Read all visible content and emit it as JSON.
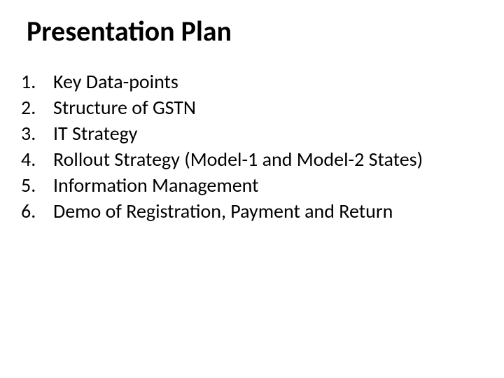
{
  "slide": {
    "title": "Presentation Plan",
    "items": [
      {
        "text": "Key Data-points"
      },
      {
        "text": "Structure of GSTN"
      },
      {
        "text": "IT Strategy"
      },
      {
        "text": "Rollout Strategy (Model-1 and Model-2 States)"
      },
      {
        "text": "Information Management"
      },
      {
        "text": "Demo of Registration, Payment and Return"
      }
    ],
    "title_fontsize": 40,
    "item_fontsize": 28,
    "background_color": "#ffffff",
    "text_color": "#000000"
  }
}
